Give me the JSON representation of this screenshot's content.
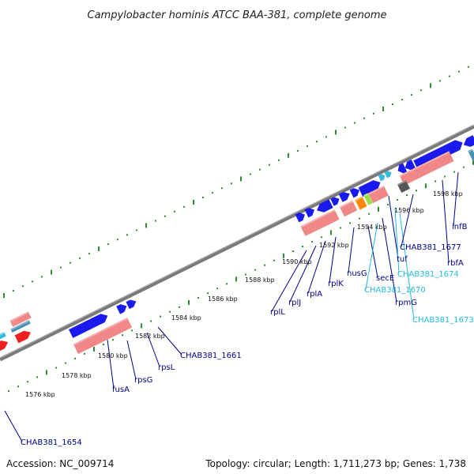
{
  "title": "Campylobacter hominis ATCC BAA-381, complete genome",
  "footer": {
    "accession": "Accession: NC_009714",
    "topology": "Topology: circular; Length: 1,711,273 bp; Genes: 1,738"
  },
  "colors": {
    "backbone": "#888888",
    "forward_cds": "#1a1aee",
    "rna_pale": "#f08888",
    "tick": "#2e8b2e",
    "label_dark": "#00008b",
    "label_cyan": "#22bbdd"
  },
  "tick_labels": [
    "1576 kbp",
    "1578 kbp",
    "1580 kbp",
    "1582 kbp",
    "1584 kbp",
    "1586 kbp",
    "1588 kbp",
    "1590 kbp",
    "1592 kbp",
    "1594 kbp",
    "1596 kbp",
    "1598 kbp"
  ],
  "gene_labels": [
    {
      "text": "CHAB381_1654",
      "color": "dark"
    },
    {
      "text": "fusA",
      "color": "dark"
    },
    {
      "text": "rpsG",
      "color": "dark"
    },
    {
      "text": "rpsL",
      "color": "dark"
    },
    {
      "text": "CHAB381_1661",
      "color": "dark"
    },
    {
      "text": "rplL",
      "color": "dark"
    },
    {
      "text": "rplJ",
      "color": "dark"
    },
    {
      "text": "rplA",
      "color": "dark"
    },
    {
      "text": "rplK",
      "color": "dark"
    },
    {
      "text": "nusG",
      "color": "dark"
    },
    {
      "text": "secE",
      "color": "dark"
    },
    {
      "text": "CHAB381_1670",
      "color": "cyan"
    },
    {
      "text": "rpmG",
      "color": "dark"
    },
    {
      "text": "tuf",
      "color": "dark"
    },
    {
      "text": "CHAB381_1674",
      "color": "cyan"
    },
    {
      "text": "CHAB381_1673",
      "color": "cyan"
    },
    {
      "text": "CHAB381_1677",
      "color": "dark"
    },
    {
      "text": "rbfA",
      "color": "dark"
    },
    {
      "text": "infB",
      "color": "dark"
    }
  ]
}
